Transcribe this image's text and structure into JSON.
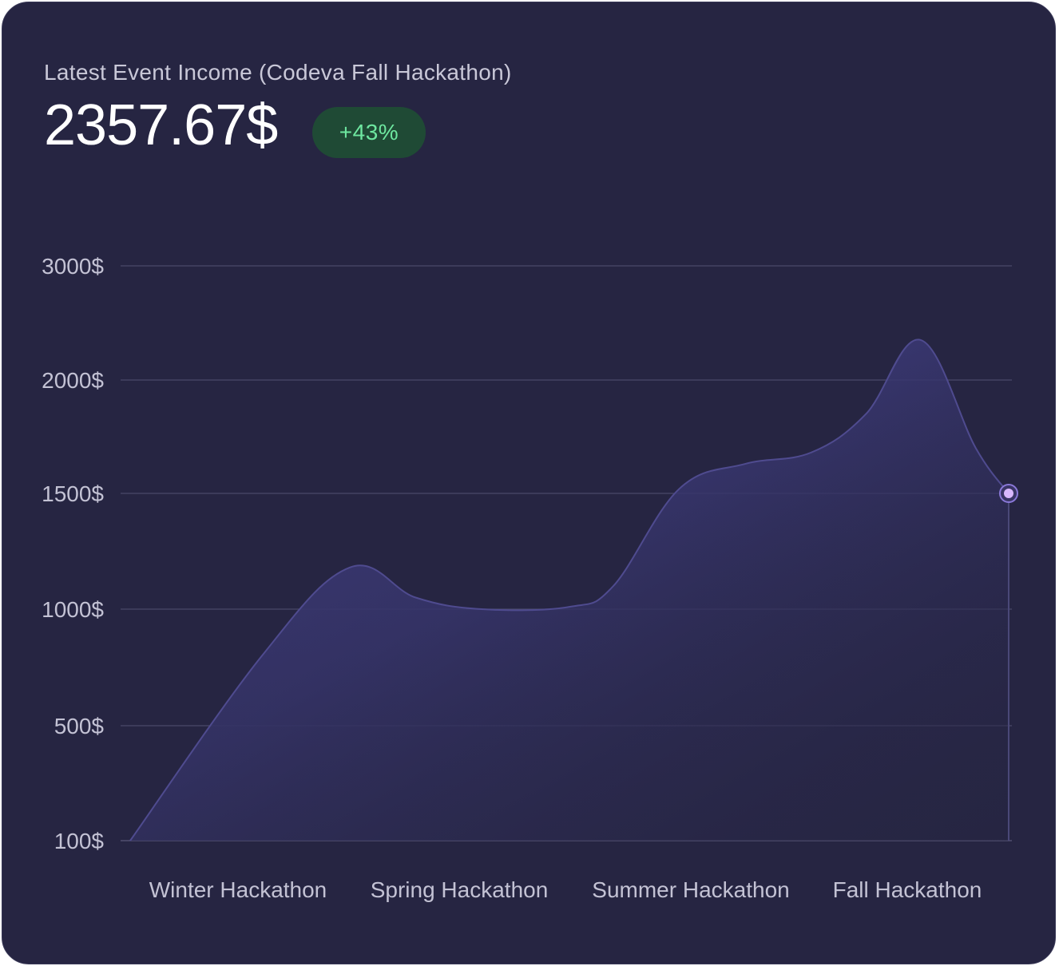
{
  "header": {
    "title": "Latest Event Income (Codeva Fall Hackathon)",
    "amount": "2357.67$",
    "change_badge": "+43%"
  },
  "colors": {
    "background": "#262542",
    "area_fill": "#3d3b78",
    "line": "#4f4b8f",
    "marker": "#d9b8ff",
    "badge_bg": "#1f4a35",
    "badge_text": "#6ee7a0"
  },
  "chart_data": {
    "type": "area",
    "title": "Latest Event Income (Codeva Fall Hackathon)",
    "xlabel": "",
    "ylabel": "",
    "categories": [
      "Winter Hackathon",
      "Spring Hackathon",
      "Summer Hackathon",
      "Fall Hackathon"
    ],
    "y_ticks": [
      {
        "value": 100,
        "label": "100$"
      },
      {
        "value": 500,
        "label": "500$"
      },
      {
        "value": 1000,
        "label": "1000$"
      },
      {
        "value": 1500,
        "label": "1500$"
      },
      {
        "value": 2000,
        "label": "2000$"
      },
      {
        "value": 3000,
        "label": "3000$"
      }
    ],
    "series": [
      {
        "name": "Income",
        "x": [
          0.0,
          0.6,
          1.0,
          1.3,
          1.6,
          2.0,
          2.2,
          2.5,
          2.8,
          3.1,
          3.35,
          3.6,
          3.85,
          4.0
        ],
        "values": [
          100,
          800,
          1180,
          1050,
          1000,
          1010,
          1100,
          1520,
          1630,
          1680,
          1850,
          2350,
          1700,
          1500
        ]
      }
    ],
    "highlight": {
      "x": 4.0,
      "value": 1500
    },
    "grid": true,
    "legend": "none"
  }
}
